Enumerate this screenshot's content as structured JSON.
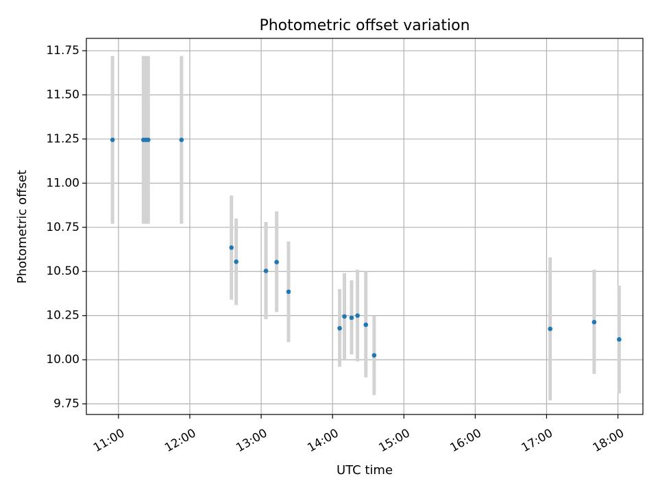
{
  "chart_data": {
    "type": "scatter",
    "title": "Photometric offset variation",
    "xlabel": "UTC time",
    "ylabel": "Photometric offset",
    "xlim": [
      "10:33",
      "18:21"
    ],
    "ylim": [
      9.69,
      11.82
    ],
    "x_ticks": [
      "11:00",
      "12:00",
      "13:00",
      "14:00",
      "15:00",
      "16:00",
      "17:00",
      "18:00"
    ],
    "y_ticks": [
      "9.75",
      "10.00",
      "10.25",
      "10.50",
      "10.75",
      "11.00",
      "11.25",
      "11.50",
      "11.75"
    ],
    "grid": true,
    "colors": {
      "marker": "#1f77b4",
      "errorbar": "#d3d3d3",
      "grid": "#b0b0b0"
    },
    "points": [
      {
        "x": "10:55",
        "y": 11.245,
        "ylow": 10.77,
        "yhigh": 11.72
      },
      {
        "x": "11:21",
        "y": 11.245,
        "ylow": 10.77,
        "yhigh": 11.72
      },
      {
        "x": "11:23",
        "y": 11.245,
        "ylow": 10.77,
        "yhigh": 11.72
      },
      {
        "x": "11:25",
        "y": 11.245,
        "ylow": 10.77,
        "yhigh": 11.72
      },
      {
        "x": "11:53",
        "y": 11.245,
        "ylow": 10.77,
        "yhigh": 11.72
      },
      {
        "x": "12:35",
        "y": 10.635,
        "ylow": 10.34,
        "yhigh": 10.93
      },
      {
        "x": "12:39",
        "y": 10.555,
        "ylow": 10.31,
        "yhigh": 10.8
      },
      {
        "x": "13:04",
        "y": 10.503,
        "ylow": 10.23,
        "yhigh": 10.78
      },
      {
        "x": "13:13",
        "y": 10.553,
        "ylow": 10.27,
        "yhigh": 10.84
      },
      {
        "x": "13:23",
        "y": 10.385,
        "ylow": 10.1,
        "yhigh": 10.67
      },
      {
        "x": "14:06",
        "y": 10.178,
        "ylow": 9.96,
        "yhigh": 10.4
      },
      {
        "x": "14:10",
        "y": 10.245,
        "ylow": 10.0,
        "yhigh": 10.49
      },
      {
        "x": "14:16",
        "y": 10.238,
        "ylow": 10.03,
        "yhigh": 10.45
      },
      {
        "x": "14:21",
        "y": 10.25,
        "ylow": 9.99,
        "yhigh": 10.51
      },
      {
        "x": "14:28",
        "y": 10.198,
        "ylow": 9.9,
        "yhigh": 10.5
      },
      {
        "x": "14:35",
        "y": 10.025,
        "ylow": 9.8,
        "yhigh": 10.25
      },
      {
        "x": "17:03",
        "y": 10.175,
        "ylow": 9.77,
        "yhigh": 10.58
      },
      {
        "x": "17:40",
        "y": 10.213,
        "ylow": 9.92,
        "yhigh": 10.51
      },
      {
        "x": "18:01",
        "y": 10.115,
        "ylow": 9.81,
        "yhigh": 10.42
      }
    ]
  }
}
